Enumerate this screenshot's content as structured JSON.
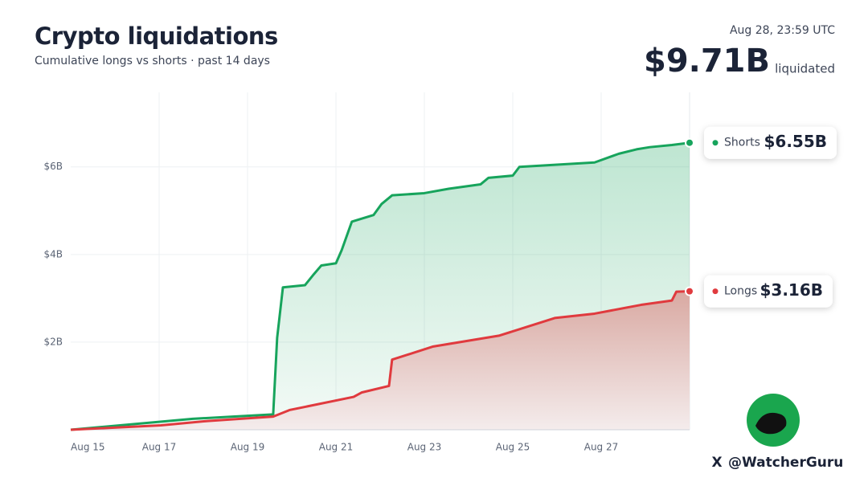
{
  "chart_data": {
    "type": "line",
    "title": "Crypto liquidations",
    "subtitle": "Cumulative longs vs shorts · past 14 days",
    "timestamp": "Aug 28, 23:59 UTC",
    "total": "$9.71B",
    "total_caption": "liquidated",
    "brand": "@WatcherGuru",
    "brand_icon": "X",
    "xlim": [
      0,
      14
    ],
    "xticks": [
      {
        "value": 0,
        "label": "Aug 15"
      },
      {
        "value": 2,
        "label": "Aug 17"
      },
      {
        "value": 4,
        "label": "Aug 19"
      },
      {
        "value": 6,
        "label": "Aug 21"
      },
      {
        "value": 8,
        "label": "Aug 23"
      },
      {
        "value": 10,
        "label": "Aug 25"
      },
      {
        "value": 12,
        "label": "Aug 27"
      }
    ],
    "ylim": [
      0,
      7.7
    ],
    "yticks": [
      {
        "value": 2,
        "label": "$2B"
      },
      {
        "value": 4,
        "label": "$4B"
      },
      {
        "value": 6,
        "label": "$6B"
      }
    ],
    "grid": true,
    "series": [
      {
        "name": "Shorts",
        "color": "#17a45c",
        "x": [
          0,
          2.76,
          3.67,
          4.58,
          4.67,
          4.8,
          5.3,
          5.5,
          5.67,
          6,
          6.13,
          6.36,
          6.85,
          7.03,
          7.27,
          8,
          8.55,
          9.27,
          9.45,
          10,
          10.15,
          11.85,
          12.4,
          12.8,
          13.1,
          13.6,
          14
        ],
        "values": [
          0,
          0.25,
          0.3,
          0.35,
          2.1,
          3.25,
          3.3,
          3.55,
          3.75,
          3.8,
          4.1,
          4.75,
          4.9,
          5.15,
          5.35,
          5.4,
          5.5,
          5.6,
          5.75,
          5.8,
          6.0,
          6.1,
          6.3,
          6.4,
          6.45,
          6.5,
          6.55
        ],
        "value_labels": [
          null,
          null,
          null,
          null,
          null,
          null,
          null,
          null,
          null,
          null,
          null,
          null,
          null,
          null,
          null,
          null,
          null,
          null,
          null,
          null,
          null,
          null,
          null,
          null,
          null,
          null,
          "$6.55B"
        ]
      },
      {
        "name": "Longs",
        "color": "#e03a3e",
        "x": [
          0,
          2.04,
          3.1,
          4.58,
          4.95,
          6.4,
          6.58,
          7.2,
          7.27,
          8.2,
          9.7,
          10.95,
          11.85,
          12.9,
          13.6,
          13.7,
          14
        ],
        "values": [
          0,
          0.1,
          0.2,
          0.3,
          0.45,
          0.75,
          0.85,
          1.0,
          1.6,
          1.9,
          2.15,
          2.55,
          2.65,
          2.85,
          2.95,
          3.15,
          3.16
        ],
        "value_labels": [
          null,
          null,
          null,
          null,
          null,
          null,
          null,
          null,
          null,
          null,
          null,
          null,
          null,
          null,
          null,
          null,
          "$3.16B"
        ]
      }
    ]
  }
}
